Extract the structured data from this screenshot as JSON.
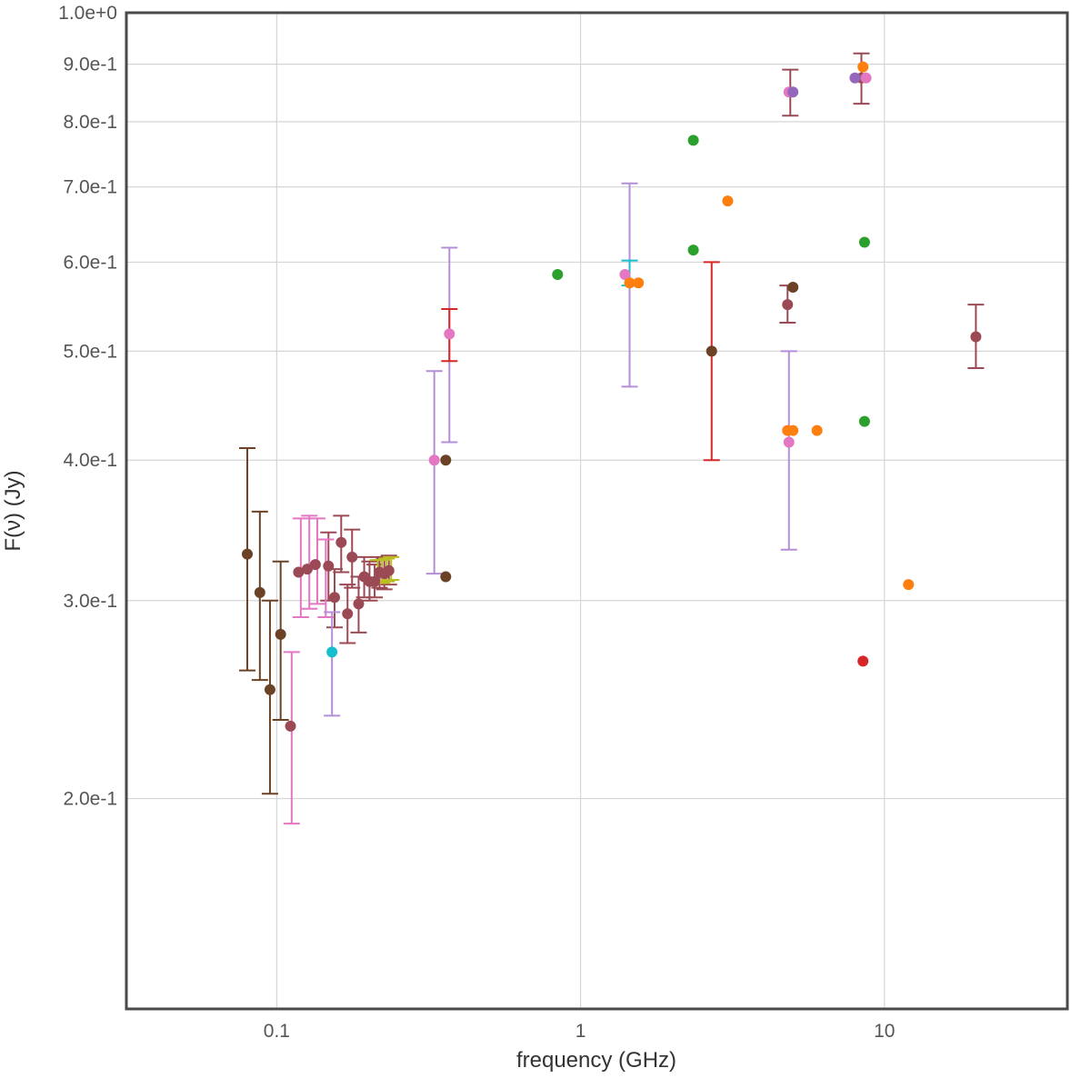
{
  "chart_data": {
    "type": "scatter",
    "title": "",
    "xlabel": "frequency (GHz)",
    "ylabel": "F(ν) (Jy)",
    "xscale": "log",
    "yscale": "log",
    "xlim": [
      0.032,
      40
    ],
    "ylim": [
      0.13,
      1.0
    ],
    "grid": true,
    "legend": "none",
    "x_ticks": [
      {
        "value": 0.1,
        "label": "0.1"
      },
      {
        "value": 1,
        "label": "1"
      },
      {
        "value": 10,
        "label": "10"
      }
    ],
    "y_ticks": [
      {
        "value": 0.2,
        "label": "2.0e-1"
      },
      {
        "value": 0.3,
        "label": "3.0e-1"
      },
      {
        "value": 0.4,
        "label": "4.0e-1"
      },
      {
        "value": 0.5,
        "label": "5.0e-1"
      },
      {
        "value": 0.6,
        "label": "6.0e-1"
      },
      {
        "value": 0.7,
        "label": "7.0e-1"
      },
      {
        "value": 0.8,
        "label": "8.0e-1"
      },
      {
        "value": 0.9,
        "label": "9.0e-1"
      },
      {
        "value": 1.0,
        "label": "1.0e+0"
      }
    ],
    "series": [
      {
        "name": "dark-brown",
        "color": "#6b4226",
        "points": [
          {
            "x": 0.08,
            "y": 0.33,
            "lo": 0.26,
            "hi": 0.41
          },
          {
            "x": 0.088,
            "y": 0.305,
            "lo": 0.255,
            "hi": 0.36
          },
          {
            "x": 0.095,
            "y": 0.25,
            "lo": 0.202,
            "hi": 0.3
          },
          {
            "x": 0.103,
            "y": 0.28,
            "lo": 0.235,
            "hi": 0.325
          },
          {
            "x": 0.36,
            "y": 0.4
          },
          {
            "x": 0.36,
            "y": 0.315
          },
          {
            "x": 2.7,
            "y": 0.5
          },
          {
            "x": 5.0,
            "y": 0.57
          }
        ]
      },
      {
        "name": "maroon",
        "color": "#9b4a55",
        "points": [
          {
            "x": 0.111,
            "y": 0.232
          },
          {
            "x": 0.118,
            "y": 0.318
          },
          {
            "x": 0.126,
            "y": 0.32
          },
          {
            "x": 0.134,
            "y": 0.323
          },
          {
            "x": 0.148,
            "y": 0.322,
            "lo": 0.3,
            "hi": 0.345
          },
          {
            "x": 0.155,
            "y": 0.302,
            "lo": 0.284,
            "hi": 0.32
          },
          {
            "x": 0.163,
            "y": 0.338,
            "lo": 0.318,
            "hi": 0.357
          },
          {
            "x": 0.171,
            "y": 0.292,
            "lo": 0.275,
            "hi": 0.31
          },
          {
            "x": 0.177,
            "y": 0.328,
            "lo": 0.308,
            "hi": 0.347
          },
          {
            "x": 0.186,
            "y": 0.298,
            "lo": 0.281,
            "hi": 0.315
          },
          {
            "x": 0.194,
            "y": 0.315,
            "lo": 0.302,
            "hi": 0.328
          },
          {
            "x": 0.202,
            "y": 0.312,
            "lo": 0.3,
            "hi": 0.325
          },
          {
            "x": 0.21,
            "y": 0.312,
            "lo": 0.302,
            "hi": 0.323
          },
          {
            "x": 0.218,
            "y": 0.318,
            "lo": 0.308,
            "hi": 0.328
          },
          {
            "x": 0.226,
            "y": 0.317,
            "lo": 0.307,
            "hi": 0.327
          },
          {
            "x": 0.234,
            "y": 0.319,
            "lo": 0.31,
            "hi": 0.329
          },
          {
            "x": 4.8,
            "y": 0.55,
            "lo": 0.53,
            "hi": 0.572
          },
          {
            "x": 4.9,
            "y": 0.85,
            "lo": 0.81,
            "hi": 0.89
          },
          {
            "x": 8.4,
            "y": 0.875,
            "lo": 0.83,
            "hi": 0.92
          },
          {
            "x": 20.0,
            "y": 0.515,
            "lo": 0.483,
            "hi": 0.55
          }
        ]
      },
      {
        "name": "pink",
        "color": "#e377c2",
        "points": [
          {
            "x": 0.112,
            "y": 0.2,
            "lo": 0.19,
            "hi": 0.27,
            "nodot": true
          },
          {
            "x": 0.12,
            "y": 0.32,
            "lo": 0.29,
            "hi": 0.355,
            "nodot": true
          },
          {
            "x": 0.128,
            "y": 0.32,
            "lo": 0.295,
            "hi": 0.357,
            "nodot": true
          },
          {
            "x": 0.136,
            "y": 0.32,
            "lo": 0.298,
            "hi": 0.355,
            "nodot": true
          },
          {
            "x": 0.145,
            "y": 0.31,
            "lo": 0.29,
            "hi": 0.34,
            "nodot": true
          },
          {
            "x": 0.33,
            "y": 0.4
          },
          {
            "x": 0.37,
            "y": 0.518
          },
          {
            "x": 1.4,
            "y": 0.585
          },
          {
            "x": 4.85,
            "y": 0.415
          },
          {
            "x": 4.85,
            "y": 0.85
          },
          {
            "x": 8.7,
            "y": 0.875
          }
        ]
      },
      {
        "name": "purple",
        "color": "#b48fd8",
        "points": [
          {
            "x": 0.152,
            "y": 0.27,
            "lo": 0.237,
            "hi": 0.293,
            "nodot": true
          },
          {
            "x": 0.33,
            "y": 0.4,
            "lo": 0.317,
            "hi": 0.48,
            "nodot": true
          },
          {
            "x": 0.37,
            "y": 0.518,
            "lo": 0.415,
            "hi": 0.618,
            "nodot": true
          },
          {
            "x": 1.45,
            "y": 0.58,
            "lo": 0.465,
            "hi": 0.705,
            "nodot": true
          },
          {
            "x": 4.85,
            "y": 0.415,
            "lo": 0.333,
            "hi": 0.5,
            "nodot": true
          }
        ]
      },
      {
        "name": "violet",
        "color": "#9467bd",
        "points": [
          {
            "x": 5.0,
            "y": 0.85
          },
          {
            "x": 8.0,
            "y": 0.875
          }
        ]
      },
      {
        "name": "cyan",
        "color": "#17becf",
        "points": [
          {
            "x": 0.152,
            "y": 0.27
          },
          {
            "x": 1.45,
            "y": 0.585,
            "lo": 0.572,
            "hi": 0.602,
            "nodot": true
          }
        ]
      },
      {
        "name": "olive",
        "color": "#bcbd22",
        "points": [
          {
            "x": 0.215,
            "y": 0.318,
            "lo": 0.311,
            "hi": 0.326,
            "nodot": true
          },
          {
            "x": 0.222,
            "y": 0.318,
            "lo": 0.311,
            "hi": 0.326,
            "nodot": true
          },
          {
            "x": 0.23,
            "y": 0.319,
            "lo": 0.312,
            "hi": 0.327,
            "nodot": true
          },
          {
            "x": 0.238,
            "y": 0.32,
            "lo": 0.313,
            "hi": 0.328,
            "nodot": true
          }
        ]
      },
      {
        "name": "red",
        "color": "#d62728",
        "points": [
          {
            "x": 0.37,
            "y": 0.518,
            "lo": 0.49,
            "hi": 0.545,
            "nodot": true
          },
          {
            "x": 2.7,
            "y": 0.5,
            "lo": 0.4,
            "hi": 0.6,
            "nodot": true
          },
          {
            "x": 8.5,
            "y": 0.265
          }
        ]
      },
      {
        "name": "orange",
        "color": "#ff7f0e",
        "points": [
          {
            "x": 1.45,
            "y": 0.575
          },
          {
            "x": 1.55,
            "y": 0.575
          },
          {
            "x": 3.05,
            "y": 0.68
          },
          {
            "x": 4.8,
            "y": 0.425
          },
          {
            "x": 5.0,
            "y": 0.425
          },
          {
            "x": 6.0,
            "y": 0.425
          },
          {
            "x": 8.5,
            "y": 0.895
          },
          {
            "x": 12.0,
            "y": 0.31
          }
        ]
      },
      {
        "name": "green",
        "color": "#2ca02c",
        "points": [
          {
            "x": 0.84,
            "y": 0.585
          },
          {
            "x": 2.35,
            "y": 0.77
          },
          {
            "x": 2.35,
            "y": 0.615
          },
          {
            "x": 8.6,
            "y": 0.625
          },
          {
            "x": 8.6,
            "y": 0.433
          }
        ]
      }
    ]
  }
}
